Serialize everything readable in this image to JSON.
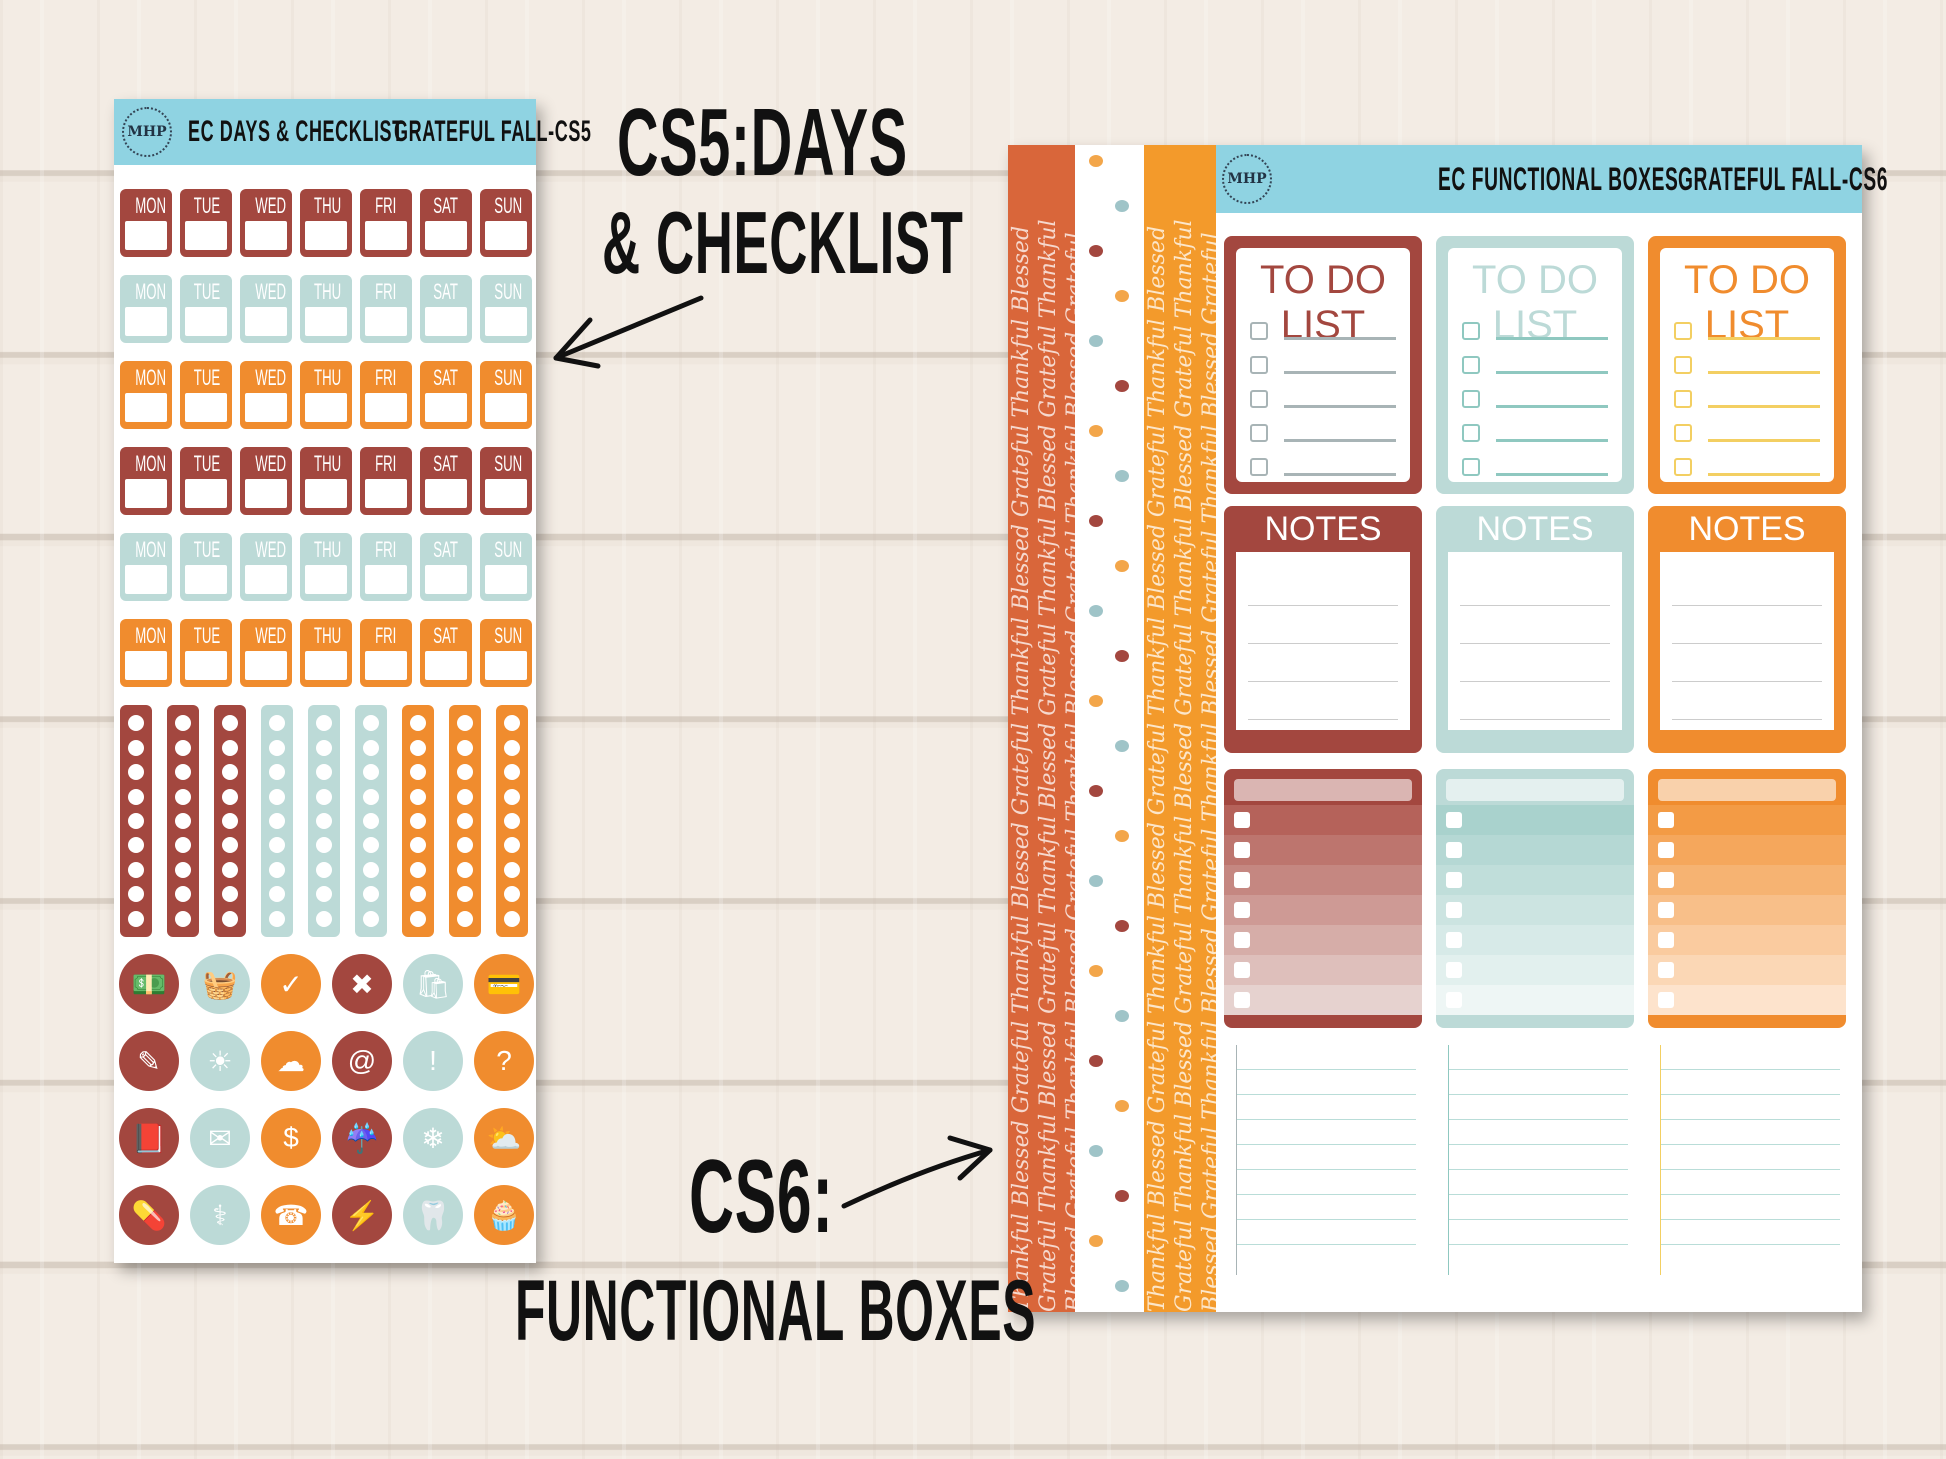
{
  "colors": {
    "maroon": "#a3473f",
    "teal": "#bcdad7",
    "orange": "#f08c2e",
    "header": "#8fd3e2",
    "rust": "#d9663a",
    "amber": "#f39a2b"
  },
  "left_sheet": {
    "logo": "MHP",
    "title": "EC DAYS & CHECKLIST",
    "code": "GRATEFUL FALL-CS5",
    "days": [
      "MON",
      "TUE",
      "WED",
      "THU",
      "FRI",
      "SAT",
      "SUN"
    ],
    "day_row_colors": [
      "maroon",
      "teal",
      "orange",
      "maroon",
      "teal",
      "orange"
    ],
    "strip_colors": [
      "maroon",
      "maroon",
      "maroon",
      "teal",
      "teal",
      "teal",
      "orange",
      "orange",
      "orange"
    ],
    "icons": [
      [
        {
          "name": "money-icon",
          "glyph": "💵"
        },
        {
          "name": "basket-icon",
          "glyph": "🧺"
        },
        {
          "name": "check-icon",
          "glyph": "✓"
        },
        {
          "name": "x-icon",
          "glyph": "✖"
        },
        {
          "name": "bag-icon",
          "glyph": "🛍"
        },
        {
          "name": "credit-card-icon",
          "glyph": "💳"
        }
      ],
      [
        {
          "name": "cheque-icon",
          "glyph": "✎"
        },
        {
          "name": "sun-icon",
          "glyph": "☀"
        },
        {
          "name": "cloud-icon",
          "glyph": "☁"
        },
        {
          "name": "email-icon",
          "glyph": "@"
        },
        {
          "name": "exclamation-icon",
          "glyph": "!"
        },
        {
          "name": "question-icon",
          "glyph": "?"
        }
      ],
      [
        {
          "name": "book-icon",
          "glyph": "📕"
        },
        {
          "name": "envelope-icon",
          "glyph": "✉"
        },
        {
          "name": "dollar-icon",
          "glyph": "$"
        },
        {
          "name": "rain-cloud-icon",
          "glyph": "☔"
        },
        {
          "name": "snow-cloud-icon",
          "glyph": "❄"
        },
        {
          "name": "partly-sunny-icon",
          "glyph": "⛅"
        }
      ],
      [
        {
          "name": "pills-icon",
          "glyph": "💊"
        },
        {
          "name": "stethoscope-icon",
          "glyph": "⚕"
        },
        {
          "name": "phone-icon",
          "glyph": "☎"
        },
        {
          "name": "storm-icon",
          "glyph": "⚡"
        },
        {
          "name": "tooth-icon",
          "glyph": "🦷"
        },
        {
          "name": "cupcake-icon",
          "glyph": "🧁"
        }
      ]
    ]
  },
  "right_sheet": {
    "logo": "MHP",
    "title": "EC FUNCTIONAL BOXES",
    "code": "GRATEFUL FALL-CS6",
    "pattern_text": "Thankful Blessed Grateful",
    "columns": [
      {
        "color": "maroon",
        "todo_label": "TO DO LIST",
        "notes_label": "NOTES",
        "text": "#a3473f",
        "line": "#a8b4b6",
        "grad": [
          "#b5625a",
          "#e6d2cf"
        ]
      },
      {
        "color": "teal",
        "todo_label": "TO DO LIST",
        "notes_label": "NOTES",
        "text": "#bcdad7",
        "line": "#8fc8c0",
        "grad": [
          "#a9d2cd",
          "#eef6f5"
        ]
      },
      {
        "color": "orange",
        "todo_label": "TO DO LIST",
        "notes_label": "NOTES",
        "text": "#f08c2e",
        "line": "#f3cf62",
        "grad": [
          "#f39b45",
          "#fde3cc"
        ]
      }
    ]
  },
  "annotations": {
    "cs5_line1": "CS5:DAYS",
    "cs5_line2": "& CHECKLIST",
    "cs6_line1": "CS6:",
    "cs6_line2": "FUNCTIONAL BOXES"
  }
}
